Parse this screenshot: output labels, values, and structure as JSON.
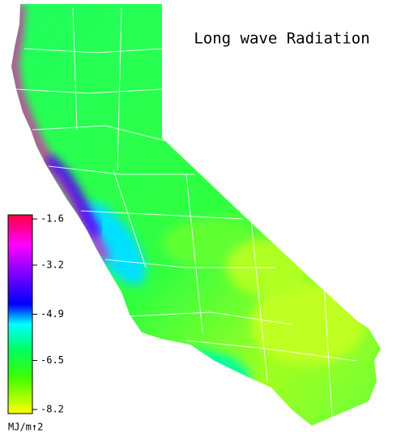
{
  "title": "Long wave Radiation",
  "colorbar": {
    "ticks": [
      -1.6,
      -3.2,
      -4.9,
      -6.5,
      -8.2
    ],
    "unit": "MJ/m↑2"
  }
}
